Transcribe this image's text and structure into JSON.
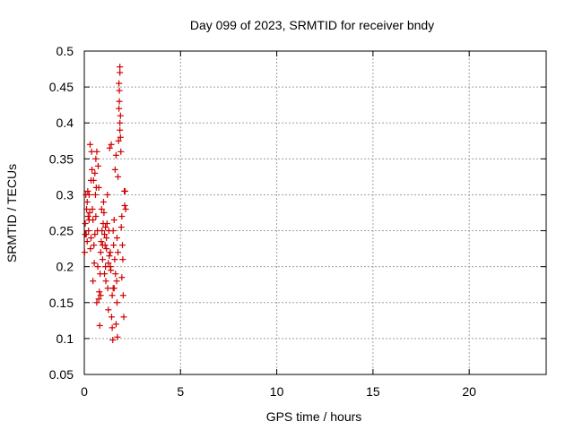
{
  "chart_data": {
    "type": "scatter",
    "title": "Day 099 of 2023, SRMTID for receiver bndy",
    "xlabel": "GPS time / hours",
    "ylabel": "SRMTID / TECUs",
    "xlim": [
      0,
      24
    ],
    "ylim": [
      0.05,
      0.5
    ],
    "grid": true,
    "marker": "+",
    "marker_color": "#d00000",
    "x_ticks": [
      0,
      5,
      10,
      15,
      20
    ],
    "x_tick_labels": [
      "0",
      "5",
      "10",
      "15",
      "20"
    ],
    "y_ticks": [
      0.05,
      0.1,
      0.15,
      0.2,
      0.25,
      0.3,
      0.35,
      0.4,
      0.45,
      0.5
    ],
    "y_tick_labels": [
      "0.05",
      "0.1",
      "0.15",
      "0.2",
      "0.25",
      "0.3",
      "0.35",
      "0.4",
      "0.45",
      "0.5"
    ],
    "series": [
      {
        "name": "SRMTID",
        "points": [
          [
            0.02,
            0.22
          ],
          [
            0.05,
            0.26
          ],
          [
            0.08,
            0.3
          ],
          [
            0.1,
            0.245
          ],
          [
            0.12,
            0.28
          ],
          [
            0.15,
            0.235
          ],
          [
            0.18,
            0.305
          ],
          [
            0.2,
            0.27
          ],
          [
            0.22,
            0.25
          ],
          [
            0.25,
            0.3
          ],
          [
            0.28,
            0.275
          ],
          [
            0.3,
            0.37
          ],
          [
            0.32,
            0.225
          ],
          [
            0.35,
            0.24
          ],
          [
            0.38,
            0.36
          ],
          [
            0.4,
            0.335
          ],
          [
            0.42,
            0.28
          ],
          [
            0.45,
            0.265
          ],
          [
            0.48,
            0.32
          ],
          [
            0.5,
            0.23
          ],
          [
            0.52,
            0.205
          ],
          [
            0.55,
            0.245
          ],
          [
            0.58,
            0.3
          ],
          [
            0.6,
            0.35
          ],
          [
            0.62,
            0.31
          ],
          [
            0.65,
            0.36
          ],
          [
            0.68,
            0.25
          ],
          [
            0.7,
            0.2
          ],
          [
            0.72,
            0.34
          ],
          [
            0.75,
            0.155
          ],
          [
            0.78,
            0.165
          ],
          [
            0.8,
            0.118
          ],
          [
            0.82,
            0.19
          ],
          [
            0.85,
            0.22
          ],
          [
            0.88,
            0.235
          ],
          [
            0.9,
            0.28
          ],
          [
            0.92,
            0.25
          ],
          [
            0.95,
            0.21
          ],
          [
            0.98,
            0.26
          ],
          [
            1.0,
            0.29
          ],
          [
            1.02,
            0.275
          ],
          [
            1.05,
            0.245
          ],
          [
            1.08,
            0.23
          ],
          [
            1.1,
            0.2
          ],
          [
            1.12,
            0.18
          ],
          [
            1.15,
            0.225
          ],
          [
            1.18,
            0.26
          ],
          [
            1.2,
            0.3
          ],
          [
            1.22,
            0.17
          ],
          [
            1.25,
            0.14
          ],
          [
            1.28,
            0.25
          ],
          [
            1.3,
            0.215
          ],
          [
            1.32,
            0.365
          ],
          [
            1.35,
            0.2
          ],
          [
            1.38,
            0.195
          ],
          [
            1.4,
            0.37
          ],
          [
            1.42,
            0.13
          ],
          [
            1.45,
            0.115
          ],
          [
            1.48,
            0.098
          ],
          [
            1.5,
            0.25
          ],
          [
            1.52,
            0.23
          ],
          [
            1.55,
            0.17
          ],
          [
            1.58,
            0.21
          ],
          [
            1.6,
            0.335
          ],
          [
            1.62,
            0.19
          ],
          [
            1.65,
            0.355
          ],
          [
            1.68,
            0.18
          ],
          [
            1.7,
            0.15
          ],
          [
            1.72,
            0.102
          ],
          [
            1.75,
            0.325
          ],
          [
            1.78,
            0.375
          ],
          [
            1.8,
            0.42
          ],
          [
            1.82,
            0.445
          ],
          [
            1.85,
            0.47
          ],
          [
            1.85,
            0.478
          ],
          [
            1.88,
            0.38
          ],
          [
            1.9,
            0.36
          ],
          [
            1.92,
            0.255
          ],
          [
            1.95,
            0.27
          ],
          [
            1.98,
            0.23
          ],
          [
            2.0,
            0.21
          ],
          [
            2.02,
            0.16
          ],
          [
            2.05,
            0.13
          ],
          [
            2.08,
            0.305
          ],
          [
            2.1,
            0.285
          ],
          [
            2.12,
            0.305
          ],
          [
            2.15,
            0.28
          ],
          [
            0.15,
            0.29
          ],
          [
            0.35,
            0.32
          ],
          [
            0.55,
            0.33
          ],
          [
            0.75,
            0.31
          ],
          [
            0.95,
            0.23
          ],
          [
            1.15,
            0.24
          ],
          [
            1.35,
            0.22
          ],
          [
            1.55,
            0.265
          ],
          [
            1.75,
            0.22
          ],
          [
            1.95,
            0.185
          ],
          [
            0.45,
            0.18
          ],
          [
            0.65,
            0.15
          ],
          [
            0.85,
            0.16
          ],
          [
            1.05,
            0.19
          ],
          [
            1.25,
            0.205
          ],
          [
            1.45,
            0.16
          ],
          [
            1.65,
            0.12
          ],
          [
            1.85,
            0.4
          ],
          [
            1.85,
            0.39
          ],
          [
            1.8,
            0.455
          ],
          [
            1.82,
            0.43
          ],
          [
            1.88,
            0.41
          ],
          [
            0.25,
            0.265
          ],
          [
            0.05,
            0.245
          ],
          [
            0.6,
            0.27
          ],
          [
            1.1,
            0.255
          ],
          [
            1.5,
            0.17
          ],
          [
            1.7,
            0.24
          ]
        ]
      }
    ]
  }
}
